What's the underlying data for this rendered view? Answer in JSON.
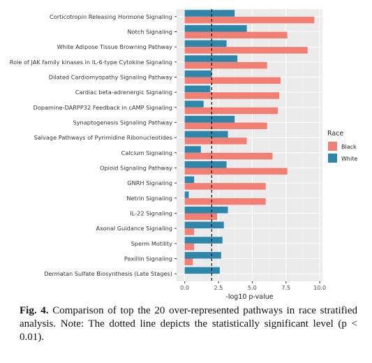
{
  "chart_data": {
    "type": "bar",
    "orientation": "horizontal",
    "categories": [
      "Corticotropin Releasing Hormone Signaling",
      "Notch Signaling",
      "White Adipose Tissue Browning Pathway",
      "Role of JAK family kinases in IL-6-type Cytokine Signaling",
      "Dilated Cardiomyopathy Signaling Pathway",
      "Cardiac beta-adrenergic Signaling",
      "Dopamine-DARPP32 Feedback in cAMP Signaling",
      "Synaptogenesis Signaling Pathway",
      "Salvage Pathways of Pyrimidine Ribonucleotides",
      "Calcium Signaling",
      "Opioid Signaling Pathway",
      "GNRH Signaling",
      "Netrin Signaling",
      "IL-22 Signaling",
      "Axonal Guidance Signaling",
      "Sperm Motility",
      "Paxillin Signaling",
      "Dermatan Sulfate Biosynthesis (Late Stages)"
    ],
    "series": [
      {
        "name": "White",
        "color": "#2e86ab",
        "values": [
          3.7,
          4.6,
          3.1,
          3.9,
          2.0,
          1.9,
          1.4,
          3.7,
          3.2,
          1.2,
          3.1,
          0.7,
          0.3,
          3.2,
          2.9,
          2.8,
          2.7,
          2.6
        ]
      },
      {
        "name": "Black",
        "color": "#f27f73",
        "values": [
          9.6,
          7.6,
          9.1,
          6.1,
          7.1,
          7.0,
          6.9,
          6.1,
          4.6,
          6.5,
          7.6,
          6.0,
          6.0,
          2.4,
          0.7,
          0.7,
          0.6,
          0.0
        ]
      }
    ],
    "xlabel": "-log10 p-value",
    "ylabel": "",
    "xlim": [
      -0.6,
      10.2
    ],
    "xticks": [
      "0.0",
      "2.5",
      "5.0",
      "7.5",
      "10.0"
    ],
    "threshold_line": 2.0,
    "legend_title": "Race",
    "legend_order": [
      "Black",
      "White"
    ],
    "legend_position": "right",
    "panel_background": "#ebebeb",
    "grid": true
  },
  "caption": {
    "label": "Fig. 4.",
    "text": " Comparison of top the 20 over-represented pathways in race stratified analysis. Note: The dotted line depicts the statistically significant level (p < 0.01)."
  }
}
